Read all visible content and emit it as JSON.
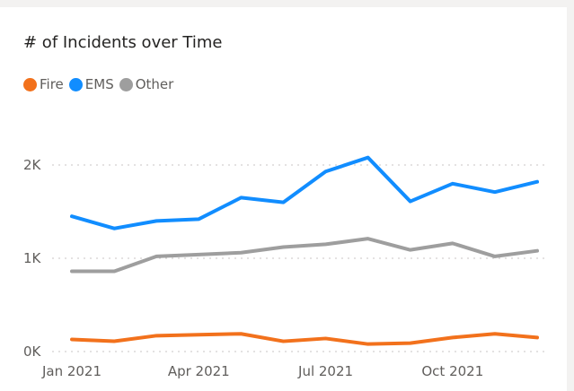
{
  "chart_data": {
    "type": "line",
    "title": "# of Incidents over Time",
    "xlabel": "",
    "ylabel": "",
    "x": [
      "2021-01",
      "2021-02",
      "2021-03",
      "2021-04",
      "2021-05",
      "2021-06",
      "2021-07",
      "2021-08",
      "2021-09",
      "2021-10",
      "2021-11",
      "2021-12"
    ],
    "x_tick_labels": [
      "Jan 2021",
      "Apr 2021",
      "Jul 2021",
      "Oct 2021"
    ],
    "x_tick_values": [
      "2021-01",
      "2021-04",
      "2021-07",
      "2021-10"
    ],
    "y_tick_labels": [
      "0K",
      "1K",
      "2K"
    ],
    "y_tick_values": [
      0,
      1000,
      2000
    ],
    "ylim": [
      0,
      2000
    ],
    "grid": true,
    "legend_position": "top-left",
    "series": [
      {
        "name": "Fire",
        "color": "#f2711c",
        "values": [
          130,
          110,
          170,
          180,
          190,
          110,
          140,
          80,
          90,
          150,
          190,
          150
        ]
      },
      {
        "name": "EMS",
        "color": "#118dff",
        "values": [
          1450,
          1320,
          1400,
          1420,
          1650,
          1600,
          1930,
          2080,
          1610,
          1800,
          1710,
          1820
        ]
      },
      {
        "name": "Other",
        "color": "#9e9e9e",
        "values": [
          860,
          860,
          1020,
          1040,
          1060,
          1120,
          1150,
          1210,
          1090,
          1160,
          1020,
          1080
        ]
      }
    ]
  }
}
